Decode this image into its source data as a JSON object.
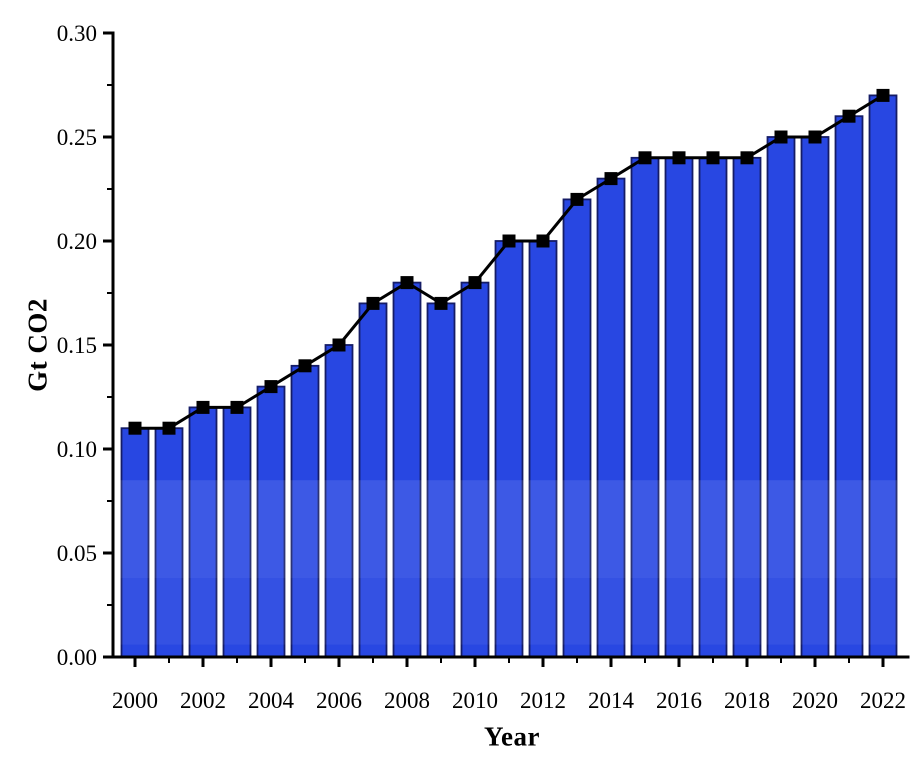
{
  "chart_data": {
    "type": "bar",
    "title": "",
    "xlabel": "Year",
    "ylabel": "Gt CO2",
    "categories": [
      2000,
      2001,
      2002,
      2003,
      2004,
      2005,
      2006,
      2007,
      2008,
      2009,
      2010,
      2011,
      2012,
      2013,
      2014,
      2015,
      2016,
      2017,
      2018,
      2019,
      2020,
      2021,
      2022
    ],
    "values": [
      0.11,
      0.11,
      0.12,
      0.12,
      0.13,
      0.14,
      0.15,
      0.17,
      0.18,
      0.17,
      0.18,
      0.2,
      0.2,
      0.22,
      0.23,
      0.24,
      0.24,
      0.24,
      0.24,
      0.25,
      0.25,
      0.26,
      0.27
    ],
    "line_overlay": {
      "marker": "square",
      "values": [
        0.11,
        0.11,
        0.12,
        0.12,
        0.13,
        0.14,
        0.15,
        0.17,
        0.18,
        0.17,
        0.18,
        0.2,
        0.2,
        0.22,
        0.23,
        0.24,
        0.24,
        0.24,
        0.24,
        0.25,
        0.25,
        0.26,
        0.27
      ]
    },
    "ylim": [
      0,
      0.3
    ],
    "y_major_ticks": [
      0.0,
      0.05,
      0.1,
      0.15,
      0.2,
      0.25,
      0.3
    ],
    "y_tick_labels": [
      "0.00",
      "0.05",
      "0.10",
      "0.15",
      "0.20",
      "0.25",
      "0.30"
    ],
    "y_minor_ticks": [
      0.025,
      0.075,
      0.125,
      0.175,
      0.225,
      0.275
    ],
    "x_major_tick_years": [
      2000,
      2002,
      2004,
      2006,
      2008,
      2010,
      2012,
      2014,
      2016,
      2018,
      2020,
      2022
    ],
    "x_tick_labels": [
      "2000",
      "2002",
      "2004",
      "2006",
      "2008",
      "2010",
      "2012",
      "2014",
      "2016",
      "2018",
      "2020",
      "2022"
    ],
    "x_minor_tick_years": [
      2001,
      2003,
      2005,
      2007,
      2009,
      2011,
      2013,
      2015,
      2017,
      2019,
      2021
    ],
    "grid": false,
    "legend": "none",
    "colors": {
      "bar_fill": "#2847e2",
      "bar_edge": "#151c66",
      "line": "#000000",
      "marker": "#000000",
      "axis": "#000000",
      "text": "#000000",
      "background": "#ffffff"
    }
  }
}
